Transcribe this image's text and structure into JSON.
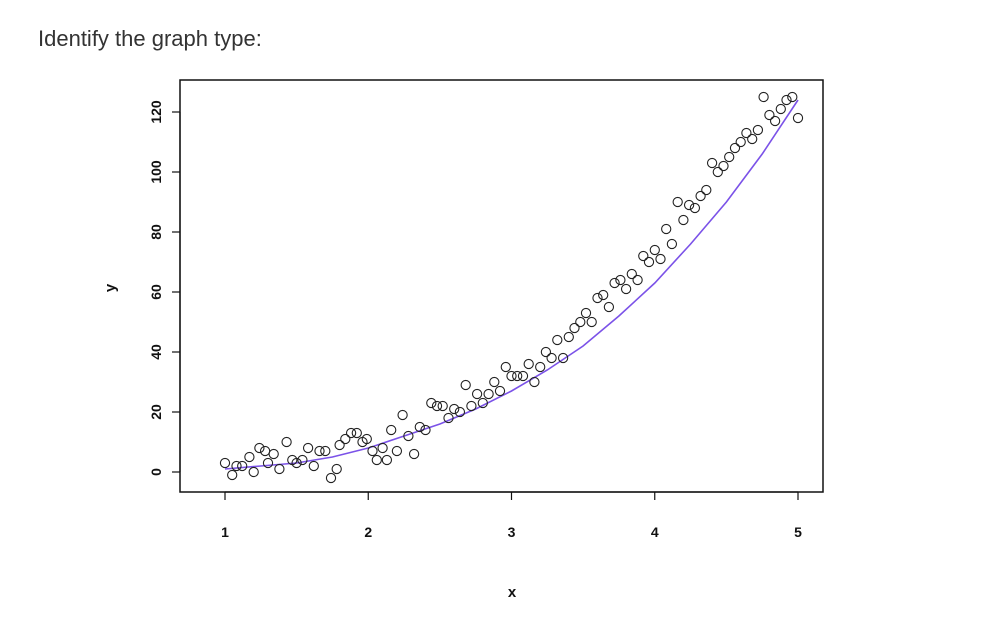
{
  "question": {
    "text": "Identify the graph type:"
  },
  "chart_data": {
    "type": "scatter",
    "title": "",
    "xlabel": "x",
    "ylabel": "y",
    "xlim": [
      1,
      5
    ],
    "ylim": [
      0,
      120
    ],
    "xticks": [
      "1",
      "2",
      "3",
      "4",
      "5"
    ],
    "yticks": [
      "0",
      "20",
      "40",
      "60",
      "80",
      "100",
      "120"
    ],
    "grid": false,
    "legend": "none",
    "colors": {
      "points": "#222222",
      "curve": "#7b52e8"
    },
    "series": [
      {
        "kind": "points",
        "x": [
          1.0,
          1.05,
          1.08,
          1.12,
          1.17,
          1.2,
          1.24,
          1.28,
          1.3,
          1.34,
          1.38,
          1.43,
          1.47,
          1.5,
          1.54,
          1.58,
          1.62,
          1.66,
          1.7,
          1.74,
          1.78,
          1.8,
          1.84,
          1.88,
          1.92,
          1.96,
          1.99,
          2.03,
          2.06,
          2.1,
          2.13,
          2.16,
          2.2,
          2.24,
          2.28,
          2.32,
          2.36,
          2.4,
          2.44,
          2.48,
          2.52,
          2.56,
          2.6,
          2.64,
          2.68,
          2.72,
          2.76,
          2.8,
          2.84,
          2.88,
          2.92,
          2.96,
          3.0,
          3.04,
          3.08,
          3.12,
          3.16,
          3.2,
          3.24,
          3.28,
          3.32,
          3.36,
          3.4,
          3.44,
          3.48,
          3.52,
          3.56,
          3.6,
          3.64,
          3.68,
          3.72,
          3.76,
          3.8,
          3.84,
          3.88,
          3.92,
          3.96,
          4.0,
          4.04,
          4.08,
          4.12,
          4.16,
          4.2,
          4.24,
          4.28,
          4.32,
          4.36,
          4.4,
          4.44,
          4.48,
          4.52,
          4.56,
          4.6,
          4.64,
          4.68,
          4.72,
          4.76,
          4.8,
          4.84,
          4.88,
          4.92,
          4.96,
          5.0
        ],
        "y": [
          3,
          -1,
          2,
          2,
          5,
          0,
          8,
          7,
          3,
          6,
          1,
          10,
          4,
          3,
          4,
          8,
          2,
          7,
          7,
          -2,
          1,
          9,
          11,
          13,
          13,
          10,
          11,
          7,
          4,
          8,
          4,
          14,
          7,
          19,
          12,
          6,
          15,
          14,
          23,
          22,
          22,
          18,
          21,
          20,
          29,
          22,
          26,
          23,
          26,
          30,
          27,
          35,
          32,
          32,
          32,
          36,
          30,
          35,
          40,
          38,
          44,
          38,
          45,
          48,
          50,
          53,
          50,
          58,
          59,
          55,
          63,
          64,
          61,
          66,
          64,
          72,
          70,
          74,
          71,
          81,
          76,
          90,
          84,
          89,
          88,
          92,
          94,
          103,
          100,
          102,
          105,
          108,
          110,
          113,
          111,
          114,
          125,
          119,
          117,
          121,
          124,
          125,
          118
        ]
      },
      {
        "kind": "curve",
        "x": [
          1.0,
          1.25,
          1.5,
          1.75,
          2.0,
          2.25,
          2.5,
          2.75,
          3.0,
          3.25,
          3.5,
          3.75,
          4.0,
          4.25,
          4.5,
          4.75,
          5.0
        ],
        "y": [
          1,
          2,
          3,
          5,
          8,
          12,
          16,
          21,
          27,
          34,
          42,
          52,
          63,
          76,
          90,
          106,
          124
        ]
      }
    ]
  }
}
